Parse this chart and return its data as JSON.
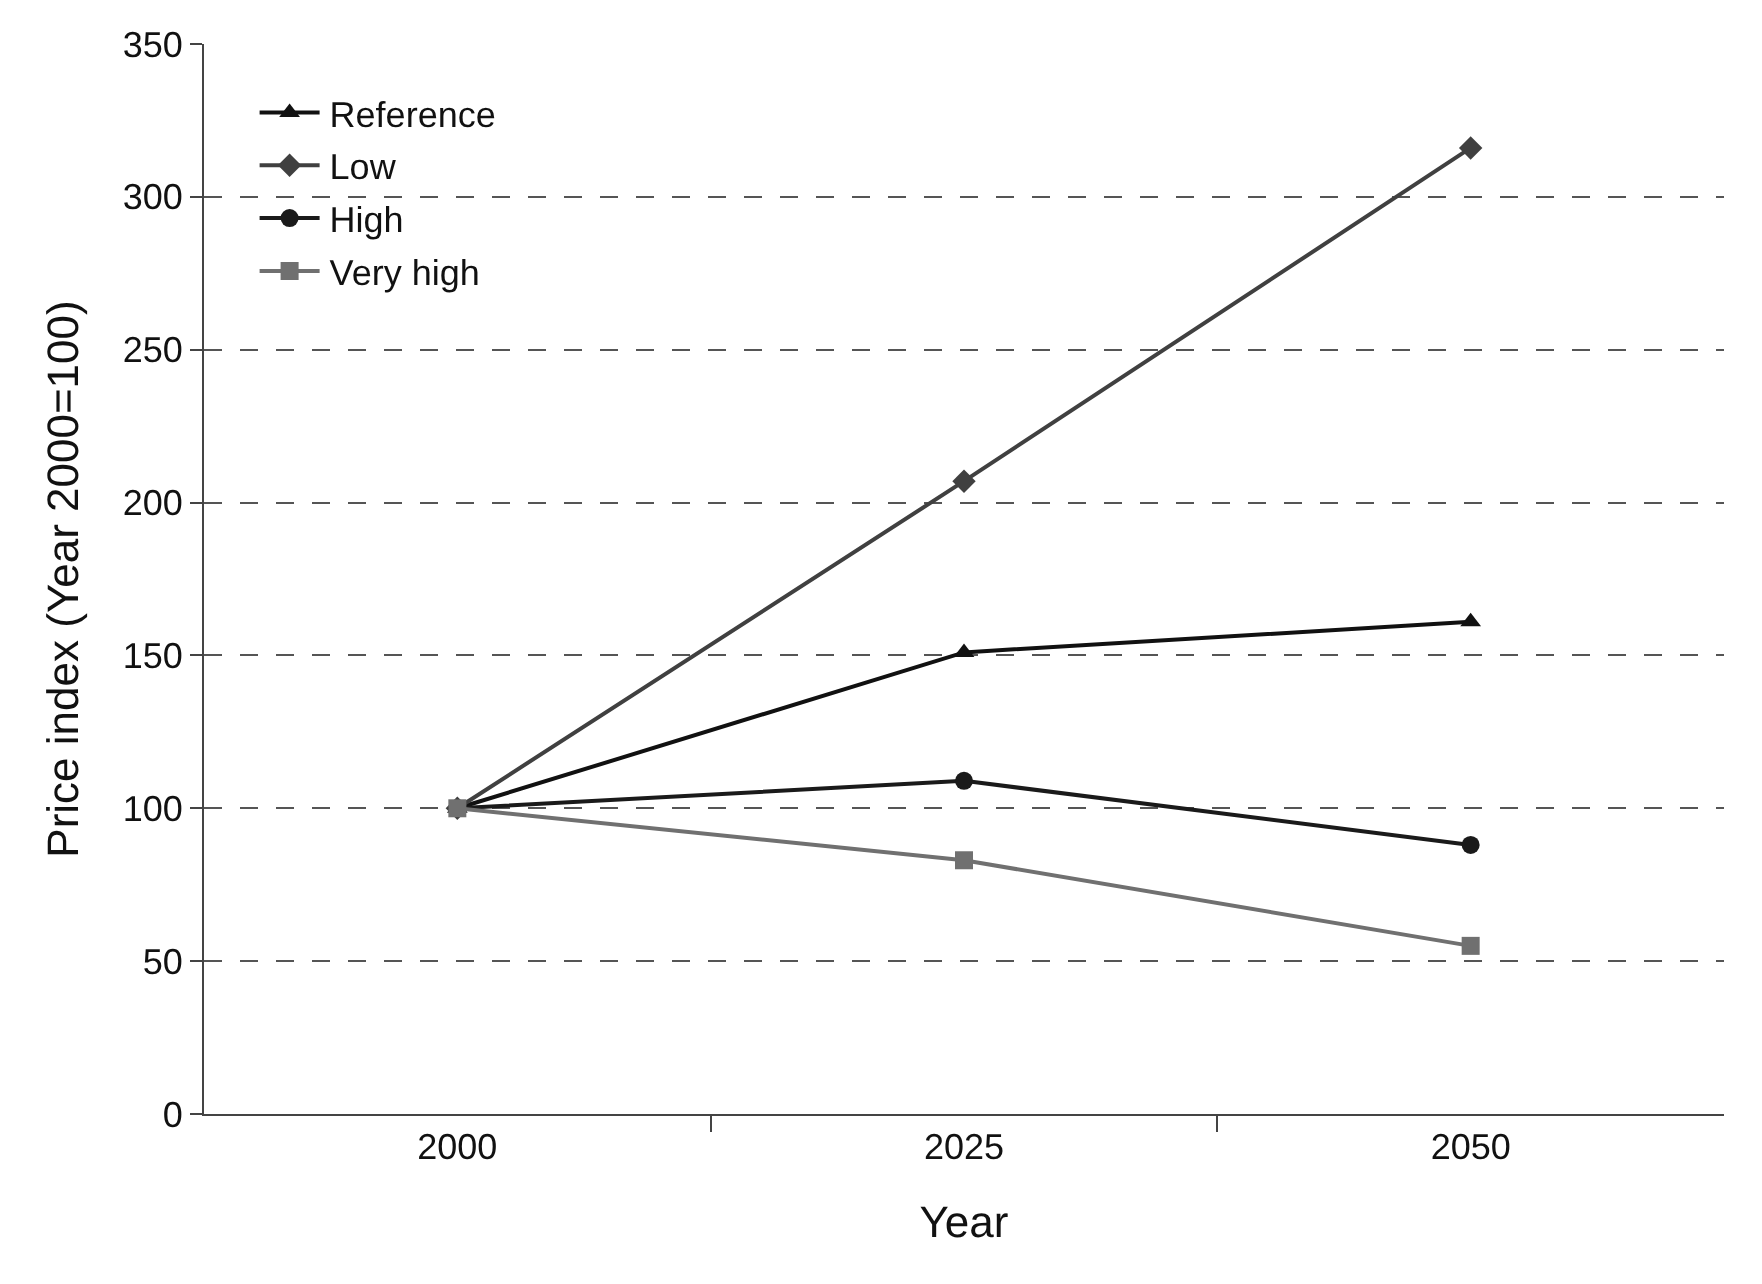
{
  "chart_data": {
    "type": "line",
    "xlabel": "Year",
    "ylabel": "Price index (Year 2000=100)",
    "categories": [
      "2000",
      "2025",
      "2050"
    ],
    "series": [
      {
        "name": "Reference",
        "color": "#111111",
        "marker": "triangle",
        "values": [
          100,
          151,
          161
        ]
      },
      {
        "name": "Low",
        "color": "#404040",
        "marker": "diamond",
        "values": [
          100,
          207,
          316
        ]
      },
      {
        "name": "High",
        "color": "#1a1a1a",
        "marker": "circle",
        "values": [
          100,
          109,
          88
        ]
      },
      {
        "name": "Very high",
        "color": "#707070",
        "marker": "square",
        "values": [
          100,
          83,
          55
        ]
      }
    ],
    "ylim": [
      0,
      350
    ],
    "yticks": [
      0,
      50,
      100,
      150,
      200,
      250,
      300,
      350
    ],
    "grid": "y",
    "legend": "top left",
    "line_style": "solid"
  }
}
